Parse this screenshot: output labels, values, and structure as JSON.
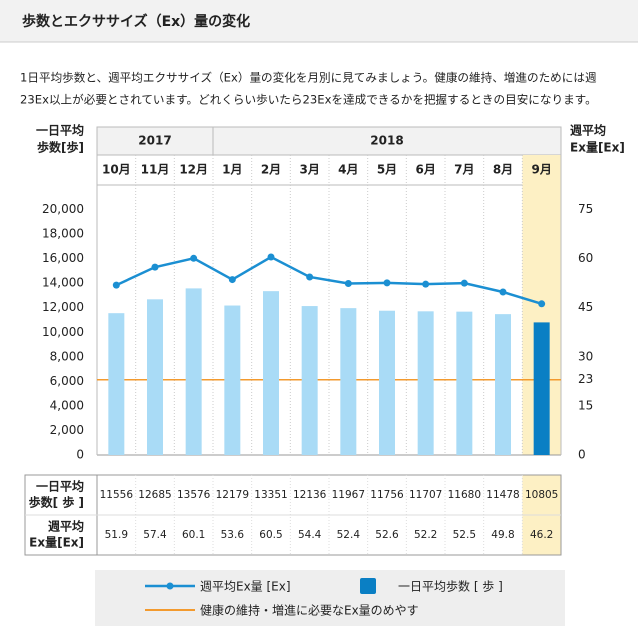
{
  "header": {
    "title": "歩数とエクササイズ（Ex）量の変化"
  },
  "description": [
    "1日平均歩数と、週平均エクササイズ（Ex）量の変化を月別に見てみましょう。健康の維持、増進のためには週",
    "23Ex以上が必要とされています。どれくらい歩いたら23Exを達成できるかを把握するときの目安になります。"
  ],
  "chart_data": {
    "type": "bar-line",
    "years": [
      "2017",
      "2018"
    ],
    "categories": [
      "10月",
      "11月",
      "12月",
      "1月",
      "2月",
      "3月",
      "4月",
      "5月",
      "6月",
      "7月",
      "8月",
      "9月"
    ],
    "highlight_category": 11,
    "highlight_color": "#fdf0c4",
    "ylabel": [
      "一日平均",
      "歩数[歩]"
    ],
    "y2label": [
      "週平均",
      "Ex量[Ex]"
    ],
    "ylim": [
      0,
      22000
    ],
    "yticks": [
      0,
      {
        "value": 2000,
        "label": "2,000"
      },
      {
        "value": 4000,
        "label": "4,000"
      },
      {
        "value": 6000,
        "label": "6,000"
      },
      {
        "value": 8000,
        "label": "8,000"
      },
      {
        "value": 10000,
        "label": "10,000"
      },
      {
        "value": 12000,
        "label": "12,000"
      },
      {
        "value": 14000,
        "label": "14,000"
      },
      {
        "value": 16000,
        "label": "16,000"
      },
      {
        "value": 18000,
        "label": "18,000"
      },
      {
        "value": 20000,
        "label": "20,000"
      }
    ],
    "y2lim": [
      0,
      82.5
    ],
    "y2ticks": [
      0,
      15,
      30,
      45,
      60,
      75
    ],
    "series": [
      {
        "name": "一日平均歩数 [ 歩 ]",
        "type": "bar",
        "color": "#a9dbf6",
        "highlight_color": "#0a7fc4",
        "table_label": [
          "一日平均",
          "歩数[ 歩 ]"
        ],
        "values": [
          11556,
          12685,
          13576,
          12179,
          13351,
          12136,
          11967,
          11756,
          11707,
          11680,
          11478,
          10805
        ]
      },
      {
        "name": "週平均Ex量 [Ex]",
        "type": "line",
        "axis": "y2",
        "color": "#1b8fd2",
        "table_label": [
          "週平均",
          "Ex量[Ex]"
        ],
        "values": [
          51.9,
          57.4,
          60.1,
          53.6,
          60.5,
          54.4,
          52.4,
          52.6,
          52.2,
          52.5,
          49.8,
          46.2
        ]
      }
    ],
    "reference": {
      "value": 23,
      "axis": "y2",
      "color": "#f39a2e",
      "label": "健康の維持・増進に必要なEx量のめやす"
    }
  }
}
